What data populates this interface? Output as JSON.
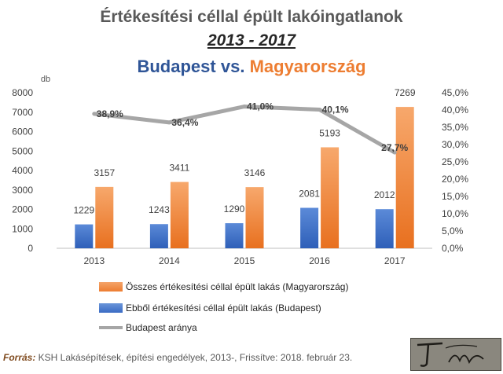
{
  "chart_data": {
    "type": "bar",
    "title_line1": "Értékesítési céllal épült lakóingatlanok",
    "title_line2": "2013  - 2017",
    "title_line3_part1": "Budapest",
    "title_line3_part2": "vs.",
    "title_line3_part3": "Magyarország",
    "y_unit_label": "db",
    "categories": [
      "2013",
      "2014",
      "2015",
      "2016",
      "2017"
    ],
    "series": [
      {
        "name": "Ebből értékesítési céllal épült lakás (Budapest)",
        "values": [
          1229,
          1243,
          1290,
          2081,
          2012
        ],
        "color": "#4472c4",
        "type": "bar"
      },
      {
        "name": "Összes értékesítési céllal épült lakás (Magyarország)",
        "values": [
          3157,
          3411,
          3146,
          5193,
          7269
        ],
        "color": "#ed7d31",
        "type": "bar"
      },
      {
        "name": "Budapest aránya",
        "values": [
          38.9,
          36.4,
          41.0,
          40.1,
          27.7
        ],
        "labels": [
          "38,9%",
          "36,4%",
          "41,0%",
          "40,1%",
          "27,7%"
        ],
        "color": "#a6a6a6",
        "type": "line",
        "axis": "right"
      }
    ],
    "ylim": [
      0,
      8000
    ],
    "yticks": [
      "0",
      "1000",
      "2000",
      "3000",
      "4000",
      "5000",
      "6000",
      "7000",
      "8000"
    ],
    "y2lim": [
      0,
      45
    ],
    "y2ticks": [
      "0,0%",
      "5,0%",
      "10,0%",
      "15,0%",
      "20,0%",
      "25,0%",
      "30,0%",
      "35,0%",
      "40,0%",
      "45,0%"
    ],
    "legend_position": "bottom",
    "grid": false
  },
  "source": {
    "label": "Forrás:",
    "text": " KSH Lakásépítések, építési engedélyek, 2013-, Frissítve: 2018. február 23."
  }
}
